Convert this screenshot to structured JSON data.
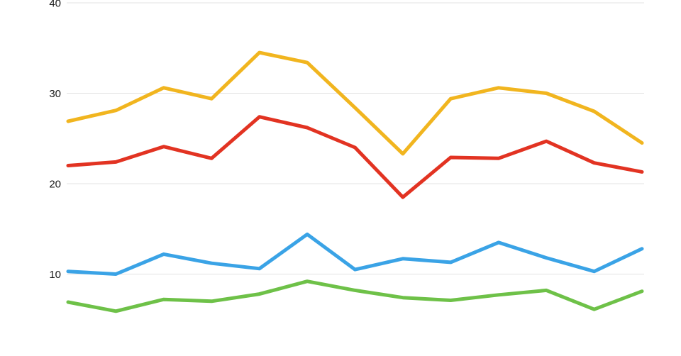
{
  "chart_data": {
    "type": "line",
    "title": "",
    "xlabel": "",
    "ylabel": "",
    "grid": true,
    "legend_position": "none visible (chart cropped)",
    "num_points": 13,
    "y_axis": {
      "ticks": [
        40,
        30,
        20,
        10
      ],
      "visible_range": [
        1,
        40.3
      ]
    },
    "x_axis": {
      "tick_labels_visible": false
    },
    "series": [
      {
        "name": "series-yellow",
        "color": "#F1B51F",
        "values": [
          26.9,
          28.1,
          30.6,
          29.4,
          34.5,
          33.4,
          28.4,
          23.3,
          29.4,
          30.6,
          30.0,
          28.0,
          24.5
        ]
      },
      {
        "name": "series-red",
        "color": "#E23322",
        "values": [
          22.0,
          22.4,
          24.1,
          22.8,
          27.4,
          26.2,
          24.0,
          18.5,
          22.9,
          22.8,
          24.7,
          22.3,
          21.3
        ]
      },
      {
        "name": "series-blue",
        "color": "#3AA3E6",
        "values": [
          10.3,
          10.0,
          12.2,
          11.2,
          10.6,
          14.4,
          10.5,
          11.7,
          11.3,
          13.5,
          11.8,
          10.3,
          12.8
        ]
      },
      {
        "name": "series-green",
        "color": "#6EC148",
        "values": [
          6.9,
          5.9,
          7.2,
          7.0,
          7.8,
          9.2,
          8.2,
          7.4,
          7.1,
          7.7,
          8.2,
          6.1,
          8.1
        ]
      }
    ],
    "colors": {
      "background": "#FFFFFF",
      "grid": "#E3E3E3",
      "tick_label": "#1A1A1A"
    }
  }
}
